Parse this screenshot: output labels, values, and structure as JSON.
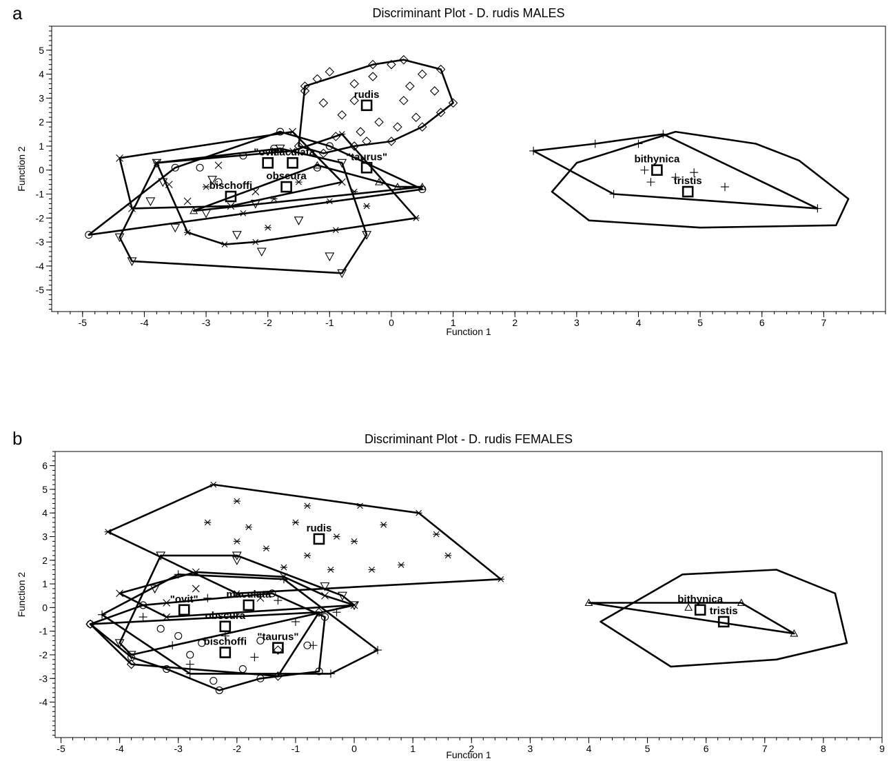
{
  "chart_data": [
    {
      "panel": "a",
      "type": "scatter",
      "title": "Discriminant Plot - D. rudis MALES",
      "xlabel": "Function 1",
      "ylabel": "Function 2",
      "xlim": [
        -5.5,
        8.0
      ],
      "ylim": [
        -5.9,
        6.0
      ],
      "xticks": [
        -5,
        -4,
        -3,
        -2,
        -1,
        0,
        1,
        2,
        3,
        4,
        5,
        6,
        7
      ],
      "yticks": [
        -5,
        -4,
        -3,
        -2,
        -1,
        0,
        1,
        2,
        3,
        4,
        5
      ],
      "centroids": [
        {
          "label": "rudis",
          "x": -0.4,
          "y": 2.7
        },
        {
          "label": "\"ovit\"",
          "x": -2.0,
          "y": 0.3
        },
        {
          "label": "maculata",
          "x": -1.6,
          "y": 0.3
        },
        {
          "label": "obscura",
          "x": -1.7,
          "y": -0.7
        },
        {
          "label": "\"taurus\"",
          "x": -0.4,
          "y": 0.1
        },
        {
          "label": "bischoffi",
          "x": -2.6,
          "y": -1.1
        },
        {
          "label": "bithynica",
          "x": 4.3,
          "y": 0.0
        },
        {
          "label": "tristis",
          "x": 4.8,
          "y": -0.9
        }
      ],
      "hulls": [
        {
          "marker": "diamond",
          "points": [
            [
              -1.5,
              1.0
            ],
            [
              -1.4,
              3.5
            ],
            [
              -0.3,
              4.4
            ],
            [
              0.2,
              4.6
            ],
            [
              0.8,
              4.2
            ],
            [
              1.0,
              2.8
            ],
            [
              0.5,
              1.8
            ],
            [
              0.0,
              1.2
            ],
            [
              -0.6,
              1.0
            ],
            [
              -1.1,
              0.7
            ]
          ]
        },
        {
          "marker": "circle",
          "points": [
            [
              -4.9,
              -2.7
            ],
            [
              -3.5,
              0.1
            ],
            [
              -1.8,
              1.6
            ],
            [
              -1.0,
              1.0
            ],
            [
              0.5,
              -0.8
            ]
          ]
        },
        {
          "marker": "x",
          "points": [
            [
              -4.4,
              0.5
            ],
            [
              -1.6,
              1.6
            ],
            [
              -0.8,
              -0.5
            ],
            [
              -2.6,
              -1.5
            ],
            [
              -4.2,
              -1.6
            ]
          ]
        },
        {
          "marker": "triangle-down",
          "points": [
            [
              -4.4,
              -2.8
            ],
            [
              -4.2,
              -3.8
            ],
            [
              -0.8,
              -4.3
            ],
            [
              -0.4,
              -2.7
            ],
            [
              -0.8,
              0.3
            ],
            [
              -1.8,
              0.9
            ],
            [
              -3.8,
              0.3
            ]
          ]
        },
        {
          "marker": "asterisk",
          "points": [
            [
              -3.8,
              0.3
            ],
            [
              -1.6,
              0.8
            ],
            [
              -0.8,
              1.5
            ],
            [
              0.4,
              -2.0
            ],
            [
              -2.2,
              -3.0
            ],
            [
              -2.7,
              -3.1
            ],
            [
              -3.3,
              -2.6
            ]
          ]
        },
        {
          "marker": "triangle-up",
          "points": [
            [
              -3.2,
              -1.7
            ],
            [
              -1.2,
              0.2
            ],
            [
              0.1,
              -0.7
            ],
            [
              0.5,
              -0.7
            ]
          ]
        },
        {
          "marker": "plus",
          "points": [
            [
              2.3,
              0.8
            ],
            [
              3.3,
              1.1
            ],
            [
              4.4,
              1.5
            ],
            [
              6.9,
              -1.6
            ],
            [
              3.6,
              -1.0
            ]
          ]
        },
        {
          "marker": "none",
          "points": [
            [
              2.6,
              -0.9
            ],
            [
              3.0,
              0.3
            ],
            [
              4.6,
              1.6
            ],
            [
              5.9,
              1.1
            ],
            [
              6.6,
              0.4
            ],
            [
              7.4,
              -1.2
            ],
            [
              7.2,
              -2.3
            ],
            [
              5.0,
              -2.4
            ],
            [
              3.2,
              -2.1
            ]
          ]
        }
      ],
      "points": [
        {
          "marker": "diamond",
          "x": -1.4,
          "y": 3.3
        },
        {
          "marker": "diamond",
          "x": -1.2,
          "y": 3.8
        },
        {
          "marker": "diamond",
          "x": -1.0,
          "y": 4.1
        },
        {
          "marker": "diamond",
          "x": -0.6,
          "y": 3.6
        },
        {
          "marker": "diamond",
          "x": -0.3,
          "y": 3.9
        },
        {
          "marker": "diamond",
          "x": 0.0,
          "y": 4.4
        },
        {
          "marker": "diamond",
          "x": 0.3,
          "y": 3.5
        },
        {
          "marker": "diamond",
          "x": 0.5,
          "y": 4.0
        },
        {
          "marker": "diamond",
          "x": 0.7,
          "y": 3.3
        },
        {
          "marker": "diamond",
          "x": 0.8,
          "y": 2.4
        },
        {
          "marker": "diamond",
          "x": 0.4,
          "y": 2.2
        },
        {
          "marker": "diamond",
          "x": 0.1,
          "y": 1.8
        },
        {
          "marker": "diamond",
          "x": -0.2,
          "y": 2.0
        },
        {
          "marker": "diamond",
          "x": -0.5,
          "y": 1.6
        },
        {
          "marker": "diamond",
          "x": -0.8,
          "y": 2.3
        },
        {
          "marker": "diamond",
          "x": -1.1,
          "y": 2.8
        },
        {
          "marker": "diamond",
          "x": -0.9,
          "y": 1.4
        },
        {
          "marker": "diamond",
          "x": -0.4,
          "y": 1.2
        },
        {
          "marker": "diamond",
          "x": 0.2,
          "y": 2.9
        },
        {
          "marker": "diamond",
          "x": -0.6,
          "y": 2.9
        },
        {
          "marker": "circle",
          "x": -3.1,
          "y": 0.1
        },
        {
          "marker": "circle",
          "x": -2.4,
          "y": 0.6
        },
        {
          "marker": "circle",
          "x": -1.9,
          "y": 0.9
        },
        {
          "marker": "circle",
          "x": -1.2,
          "y": 0.1
        },
        {
          "marker": "circle",
          "x": -2.8,
          "y": -0.5
        },
        {
          "marker": "x",
          "x": -3.6,
          "y": -0.6
        },
        {
          "marker": "x",
          "x": -2.8,
          "y": 0.2
        },
        {
          "marker": "x",
          "x": -3.3,
          "y": -1.3
        },
        {
          "marker": "x",
          "x": -2.2,
          "y": -0.9
        },
        {
          "marker": "triangle-down",
          "x": -3.9,
          "y": -1.3
        },
        {
          "marker": "triangle-down",
          "x": -3.5,
          "y": -2.4
        },
        {
          "marker": "triangle-down",
          "x": -3.0,
          "y": -1.8
        },
        {
          "marker": "triangle-down",
          "x": -2.5,
          "y": -2.7
        },
        {
          "marker": "triangle-down",
          "x": -2.1,
          "y": -3.4
        },
        {
          "marker": "triangle-down",
          "x": -1.5,
          "y": -2.1
        },
        {
          "marker": "triangle-down",
          "x": -1.0,
          "y": -3.6
        },
        {
          "marker": "triangle-down",
          "x": -3.7,
          "y": -0.5
        },
        {
          "marker": "triangle-down",
          "x": -2.9,
          "y": -0.4
        },
        {
          "marker": "triangle-down",
          "x": -2.2,
          "y": -1.4
        },
        {
          "marker": "asterisk",
          "x": -3.0,
          "y": -0.7
        },
        {
          "marker": "asterisk",
          "x": -2.4,
          "y": -1.8
        },
        {
          "marker": "asterisk",
          "x": -1.9,
          "y": -1.2
        },
        {
          "marker": "asterisk",
          "x": -1.5,
          "y": -0.5
        },
        {
          "marker": "asterisk",
          "x": -1.0,
          "y": -1.3
        },
        {
          "marker": "asterisk",
          "x": -0.6,
          "y": -0.9
        },
        {
          "marker": "asterisk",
          "x": -0.9,
          "y": -2.5
        },
        {
          "marker": "asterisk",
          "x": -0.4,
          "y": -1.5
        },
        {
          "marker": "asterisk",
          "x": -2.0,
          "y": -2.4
        },
        {
          "marker": "triangle-up",
          "x": -0.2,
          "y": -0.5
        },
        {
          "marker": "plus",
          "x": 4.1,
          "y": 0.0
        },
        {
          "marker": "plus",
          "x": 4.2,
          "y": -0.5
        },
        {
          "marker": "plus",
          "x": 4.9,
          "y": -0.1
        },
        {
          "marker": "plus",
          "x": 5.4,
          "y": -0.7
        },
        {
          "marker": "plus",
          "x": 4.0,
          "y": 1.1
        },
        {
          "marker": "plus",
          "x": 4.6,
          "y": -0.3
        }
      ]
    },
    {
      "panel": "b",
      "type": "scatter",
      "title": "Discriminant Plot - D. rudis FEMALES",
      "xlabel": "Function 1",
      "ylabel": "Function 2",
      "xlim": [
        -5.1,
        9.0
      ],
      "ylim": [
        -5.5,
        6.6
      ],
      "xticks": [
        -5,
        -4,
        -3,
        -2,
        -1,
        0,
        1,
        2,
        3,
        4,
        5,
        6,
        7,
        8,
        9
      ],
      "yticks": [
        -4,
        -3,
        -2,
        -1,
        0,
        1,
        2,
        3,
        4,
        5,
        6
      ],
      "centroids": [
        {
          "label": "rudis",
          "x": -0.6,
          "y": 2.9
        },
        {
          "label": "\"ovit\"",
          "x": -2.9,
          "y": -0.1
        },
        {
          "label": "maculata",
          "x": -1.8,
          "y": 0.1
        },
        {
          "label": "obscura",
          "x": -2.2,
          "y": -0.8
        },
        {
          "label": "\"taurus\"",
          "x": -1.3,
          "y": -1.7
        },
        {
          "label": "bischoffi",
          "x": -2.2,
          "y": -1.9
        },
        {
          "label": "bithynica",
          "x": 5.9,
          "y": -0.1
        },
        {
          "label": "tristis",
          "x": 6.3,
          "y": -0.6
        }
      ],
      "hulls": [
        {
          "marker": "asterisk",
          "points": [
            [
              -4.2,
              3.2
            ],
            [
              -2.4,
              5.2
            ],
            [
              1.1,
              4.0
            ],
            [
              2.5,
              1.2
            ],
            [
              -2.0,
              0.6
            ]
          ]
        },
        {
          "marker": "triangle-down",
          "points": [
            [
              -3.3,
              2.2
            ],
            [
              -2.0,
              2.2
            ],
            [
              -0.2,
              0.5
            ],
            [
              0.0,
              0.1
            ],
            [
              -3.8,
              -2.0
            ],
            [
              -4.0,
              -1.5
            ]
          ]
        },
        {
          "marker": "x",
          "points": [
            [
              -4.0,
              0.6
            ],
            [
              -2.7,
              1.5
            ],
            [
              -1.2,
              1.3
            ],
            [
              -0.5,
              0.5
            ],
            [
              0.0,
              0.1
            ],
            [
              -3.2,
              -0.4
            ]
          ]
        },
        {
          "marker": "plus",
          "points": [
            [
              -4.3,
              -0.3
            ],
            [
              -3.0,
              1.4
            ],
            [
              -1.2,
              1.2
            ],
            [
              0.4,
              -1.8
            ],
            [
              -0.4,
              -2.8
            ],
            [
              -2.8,
              -2.8
            ]
          ]
        },
        {
          "marker": "circle",
          "points": [
            [
              -4.5,
              -0.7
            ],
            [
              -3.8,
              -2.1
            ],
            [
              -3.2,
              -2.6
            ],
            [
              -2.3,
              -3.5
            ],
            [
              -1.6,
              -3.0
            ],
            [
              -0.6,
              -2.7
            ],
            [
              -0.5,
              -0.4
            ],
            [
              -1.4,
              0.6
            ],
            [
              -3.6,
              0.1
            ]
          ]
        },
        {
          "marker": "diamond",
          "points": [
            [
              -4.5,
              -0.7
            ],
            [
              -0.6,
              -0.2
            ],
            [
              -1.3,
              -2.9
            ],
            [
              -3.8,
              -2.4
            ]
          ]
        },
        {
          "marker": "triangle-up",
          "points": [
            [
              4.0,
              0.2
            ],
            [
              6.6,
              0.2
            ],
            [
              7.5,
              -1.1
            ]
          ]
        },
        {
          "marker": "none",
          "points": [
            [
              4.2,
              -0.6
            ],
            [
              5.6,
              1.4
            ],
            [
              7.2,
              1.6
            ],
            [
              8.2,
              0.6
            ],
            [
              8.4,
              -1.5
            ],
            [
              7.2,
              -2.2
            ],
            [
              5.4,
              -2.5
            ]
          ]
        }
      ],
      "points": [
        {
          "marker": "asterisk",
          "x": -1.8,
          "y": 3.4
        },
        {
          "marker": "asterisk",
          "x": -1.5,
          "y": 2.5
        },
        {
          "marker": "asterisk",
          "x": -1.0,
          "y": 3.6
        },
        {
          "marker": "asterisk",
          "x": -0.8,
          "y": 4.3
        },
        {
          "marker": "asterisk",
          "x": -0.3,
          "y": 3.0
        },
        {
          "marker": "asterisk",
          "x": 0.1,
          "y": 4.3
        },
        {
          "marker": "asterisk",
          "x": 0.5,
          "y": 3.5
        },
        {
          "marker": "asterisk",
          "x": 0.8,
          "y": 1.8
        },
        {
          "marker": "asterisk",
          "x": 1.4,
          "y": 3.1
        },
        {
          "marker": "asterisk",
          "x": 1.6,
          "y": 2.2
        },
        {
          "marker": "asterisk",
          "x": 0.3,
          "y": 1.6
        },
        {
          "marker": "asterisk",
          "x": -0.4,
          "y": 1.6
        },
        {
          "marker": "asterisk",
          "x": -1.2,
          "y": 1.7
        },
        {
          "marker": "asterisk",
          "x": -2.0,
          "y": 2.8
        },
        {
          "marker": "asterisk",
          "x": -2.5,
          "y": 3.6
        },
        {
          "marker": "asterisk",
          "x": -2.0,
          "y": 4.5
        },
        {
          "marker": "asterisk",
          "x": -0.8,
          "y": 2.2
        },
        {
          "marker": "asterisk",
          "x": 0.0,
          "y": 2.8
        },
        {
          "marker": "triangle-down",
          "x": -2.0,
          "y": 2.0
        },
        {
          "marker": "triangle-down",
          "x": -3.4,
          "y": 0.8
        },
        {
          "marker": "triangle-down",
          "x": -0.5,
          "y": 0.9
        },
        {
          "marker": "x",
          "x": -3.2,
          "y": 0.2
        },
        {
          "marker": "x",
          "x": -2.7,
          "y": 0.8
        },
        {
          "marker": "x",
          "x": -1.6,
          "y": 0.4
        },
        {
          "marker": "plus",
          "x": -3.6,
          "y": -0.4
        },
        {
          "marker": "plus",
          "x": -3.1,
          "y": -1.6
        },
        {
          "marker": "plus",
          "x": -2.5,
          "y": 0.4
        },
        {
          "marker": "plus",
          "x": -2.2,
          "y": -1.2
        },
        {
          "marker": "plus",
          "x": -1.7,
          "y": -2.1
        },
        {
          "marker": "plus",
          "x": -1.0,
          "y": -0.6
        },
        {
          "marker": "plus",
          "x": -0.7,
          "y": -1.6
        },
        {
          "marker": "plus",
          "x": -0.3,
          "y": -0.2
        },
        {
          "marker": "plus",
          "x": -1.3,
          "y": 0.3
        },
        {
          "marker": "plus",
          "x": -2.8,
          "y": -2.4
        },
        {
          "marker": "circle",
          "x": -3.3,
          "y": -0.9
        },
        {
          "marker": "circle",
          "x": -2.8,
          "y": -2.0
        },
        {
          "marker": "circle",
          "x": -2.4,
          "y": -3.1
        },
        {
          "marker": "circle",
          "x": -1.9,
          "y": -2.6
        },
        {
          "marker": "circle",
          "x": -1.6,
          "y": -1.4
        },
        {
          "marker": "circle",
          "x": -0.8,
          "y": -1.6
        },
        {
          "marker": "circle",
          "x": -2.6,
          "y": -1.5
        },
        {
          "marker": "circle",
          "x": -3.0,
          "y": -1.2
        },
        {
          "marker": "diamond",
          "x": -1.3,
          "y": -1.8
        },
        {
          "marker": "triangle-up",
          "x": 5.7,
          "y": 0.0
        }
      ]
    }
  ]
}
